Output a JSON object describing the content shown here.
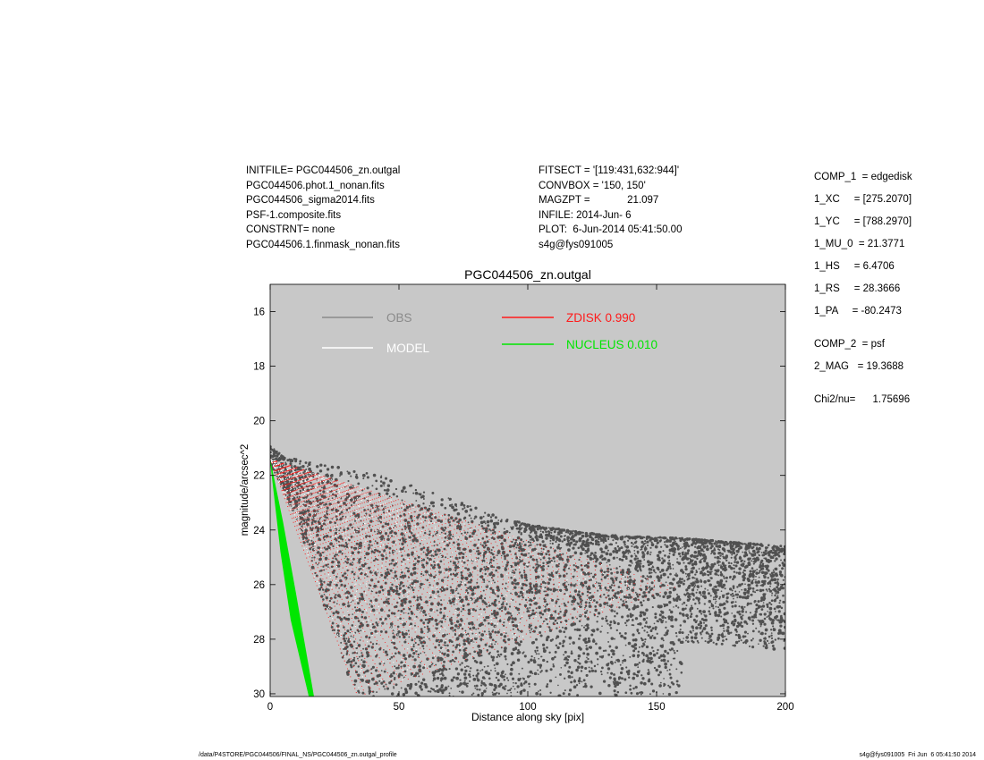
{
  "header": {
    "left_lines": [
      "INITFILE= PGC044506_zn.outgal",
      "PGC044506.phot.1_nonan.fits",
      "PGC044506_sigma2014.fits",
      "PSF-1.composite.fits",
      "CONSTRNT= none",
      "PGC044506.1.finmask_nonan.fits"
    ],
    "middle_lines": [
      "FITSECT = '[119:431,632:944]'",
      "CONVBOX = '150, 150'",
      "MAGZPT =             21.097",
      "INFILE: 2014-Jun- 6",
      "PLOT:  6-Jun-2014 05:41:50.00",
      "s4g@fys091005"
    ]
  },
  "params": [
    "COMP_1  = edgedisk",
    "1_XC     = [275.2070]",
    "1_YC     = [788.2970]",
    "1_MU_0  = 21.3771",
    "1_HS     = 6.4706",
    "1_RS     = 28.3666",
    "1_PA     = -80.2473",
    "COMP_2  = psf",
    "2_MAG   = 19.3688",
    "Chi2/nu=      1.75696"
  ],
  "footer": {
    "left": "/data/P4STORE/PGC044506/FINAL_NS/PGC044506_zn.outgal_profile",
    "right": "s4g@fys091005  Fri Jun  6 05:41:50 2014"
  },
  "colors": {
    "plot_bg": "#c8c8c8",
    "obs": "#505050",
    "obs_legend": "#8a8a8a",
    "model": "#ffffff",
    "zdisk": "#ff1a1a",
    "nucleus": "#00e600"
  },
  "chart_data": {
    "type": "scatter",
    "title": "PGC044506_zn.outgal",
    "xlabel": "Distance along sky [pix]",
    "ylabel": "magnitude/arcsec^2",
    "xlim": [
      0,
      200
    ],
    "ylim": [
      15.0,
      30.1
    ],
    "y_inverted": true,
    "xticks": [
      0,
      50,
      100,
      150,
      200
    ],
    "yticks": [
      16,
      18,
      20,
      22,
      24,
      26,
      28,
      30
    ],
    "legend": [
      {
        "label": "OBS",
        "color": "#8a8a8a"
      },
      {
        "label": "MODEL",
        "color": "#ffffff"
      },
      {
        "label": "ZDISK  0.990",
        "color": "#ff1a1a"
      },
      {
        "label": "NUCLEUS  0.010",
        "color": "#00e600"
      }
    ],
    "series": [
      {
        "name": "OBS",
        "style": "dense dark point cloud",
        "upper_envelope": [
          [
            0,
            20.9
          ],
          [
            5,
            21.3
          ],
          [
            20,
            21.6
          ],
          [
            40,
            21.9
          ],
          [
            60,
            22.5
          ],
          [
            80,
            23.2
          ],
          [
            100,
            23.8
          ],
          [
            130,
            24.2
          ],
          [
            160,
            24.3
          ],
          [
            200,
            24.6
          ]
        ],
        "lower_envelope": [
          [
            0,
            21.6
          ],
          [
            5,
            22.5
          ],
          [
            10,
            23.6
          ],
          [
            15,
            25.0
          ],
          [
            20,
            26.5
          ],
          [
            25,
            28.0
          ],
          [
            30,
            29.3
          ],
          [
            35,
            30.1
          ]
        ]
      },
      {
        "name": "ZDISK  0.990",
        "style": "red fan of model points",
        "upper_envelope": [
          [
            0,
            21.4
          ],
          [
            50,
            22.9
          ],
          [
            100,
            24.5
          ],
          [
            157,
            26.1
          ]
        ],
        "lower_envelope": [
          [
            0,
            21.4
          ],
          [
            10,
            24.1
          ],
          [
            20,
            26.7
          ],
          [
            34,
            30.1
          ]
        ]
      },
      {
        "name": "NUCLEUS  0.010",
        "style": "green band",
        "upper_envelope": [
          [
            0,
            21.4
          ],
          [
            5,
            23.7
          ],
          [
            10,
            26.3
          ],
          [
            17,
            30.1
          ]
        ],
        "lower_envelope": [
          [
            0,
            21.5
          ],
          [
            4,
            24.8
          ],
          [
            8,
            27.3
          ],
          [
            15,
            30.1
          ]
        ]
      }
    ]
  }
}
